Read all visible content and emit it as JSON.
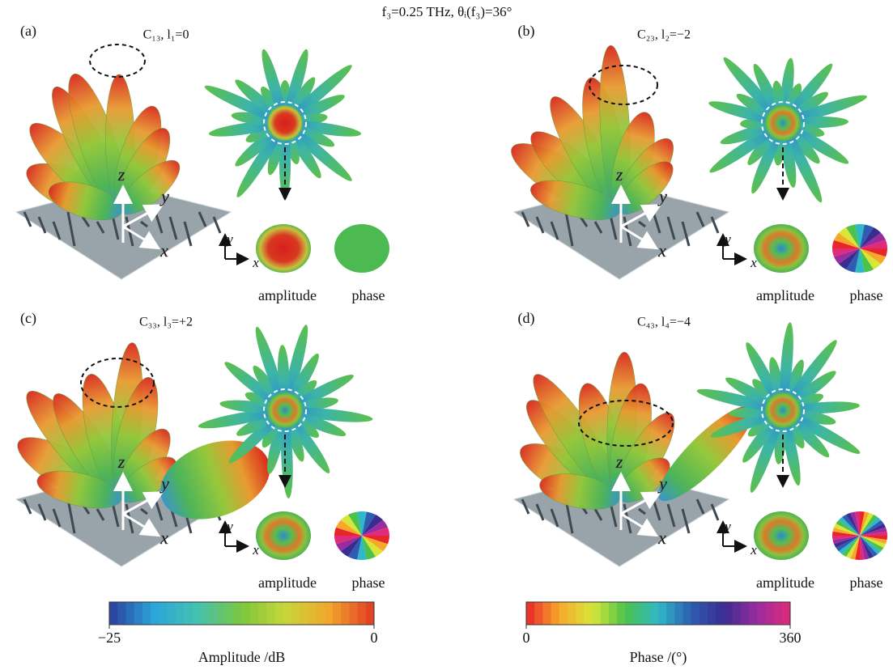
{
  "header": {
    "title": "f₃=0.25 THz, θᵢ(f₃)=36°"
  },
  "panels": [
    {
      "label": "(a)",
      "title": "C₁₃, l₁=0",
      "axes": {
        "x": "x",
        "y": "y",
        "z": "z"
      },
      "inset_axes": {
        "x": "x",
        "y": "y"
      },
      "amplitude_label": "amplitude",
      "phase_label": "phase"
    },
    {
      "label": "(b)",
      "title": "C₂₃, l₂=−2",
      "axes": {
        "x": "x",
        "y": "y",
        "z": "z"
      },
      "inset_axes": {
        "x": "x",
        "y": "y"
      },
      "amplitude_label": "amplitude",
      "phase_label": "phase"
    },
    {
      "label": "(c)",
      "title": "C₃₃, l₃=+2",
      "axes": {
        "x": "x",
        "y": "y",
        "z": "z"
      },
      "inset_axes": {
        "x": "x",
        "y": "y"
      },
      "amplitude_label": "amplitude",
      "phase_label": "phase"
    },
    {
      "label": "(d)",
      "title": "C₄₃, l₄=−4",
      "axes": {
        "x": "x",
        "y": "y",
        "z": "z"
      },
      "inset_axes": {
        "x": "x",
        "y": "y"
      },
      "amplitude_label": "amplitude",
      "phase_label": "phase"
    }
  ],
  "colorbars": [
    {
      "label": "Amplitude /dB",
      "lim": [
        -25,
        0
      ],
      "ticks": [
        {
          "value": -25,
          "label": "−25"
        },
        0
      ],
      "colors": [
        "#2b3d9c",
        "#2aa5d8",
        "#45c1b0",
        "#7cc63c",
        "#c9d63a",
        "#f2a52c",
        "#e03a22"
      ]
    },
    {
      "label": "Phase /(°)",
      "lim": [
        0,
        360
      ],
      "ticks": [
        0,
        360
      ],
      "colors": [
        "#e8262a",
        "#f7a82a",
        "#d8e63a",
        "#4cc24a",
        "#2fb8c8",
        "#2d5cb0",
        "#3a2c90",
        "#9a2ca0",
        "#e02a7a"
      ]
    }
  ]
}
